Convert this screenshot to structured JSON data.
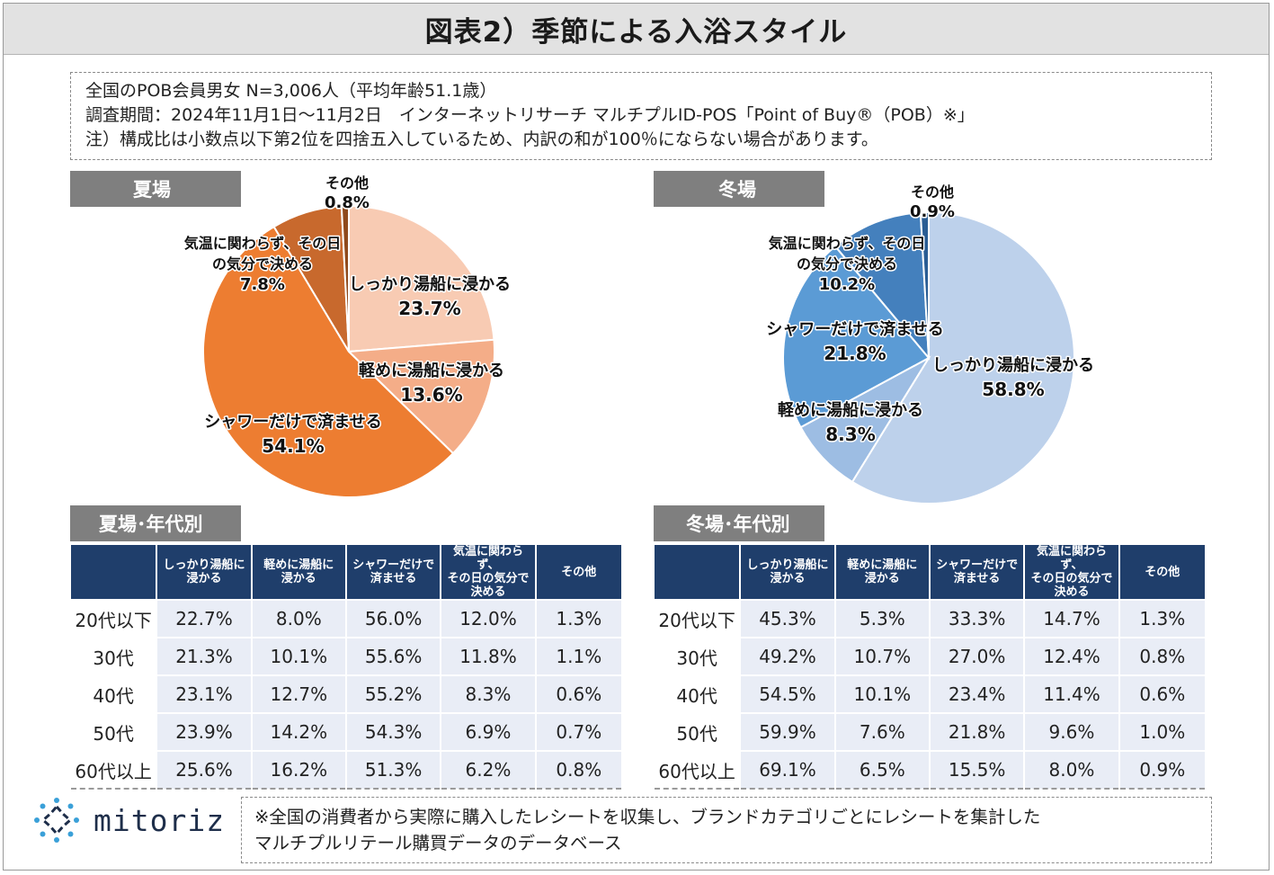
{
  "title": "図表2）季節による入浴スタイル",
  "notes": [
    "全国のPOB会員男女 N=3,006人（平均年齢51.1歳）",
    "調査期間：2024年11月1日～11月2日　インターネットリサーチ マルチプルID-POS「Point of Buy®（POB）※」",
    "注）構成比は小数点以下第2位を四捨五入しているため、内訳の和が100％にならない場合があります。"
  ],
  "summer": {
    "label": "夏場",
    "table_label": "夏場･年代別"
  },
  "winter": {
    "label": "冬場",
    "table_label": "冬場･年代別"
  },
  "chart_data": [
    {
      "type": "pie",
      "title": "夏場",
      "slices": [
        {
          "label": "しっかり湯船に浸かる",
          "value": 23.7,
          "value_label": "23.7%",
          "color": "#f8cbb3"
        },
        {
          "label": "軽めに湯船に浸かる",
          "value": 13.6,
          "value_label": "13.6%",
          "color": "#f4ad88"
        },
        {
          "label": "シャワーだけで済ませる",
          "value": 54.1,
          "value_label": "54.1%",
          "color": "#ed7d31"
        },
        {
          "label": "気温に関わらず、その日の気分で決める",
          "value": 7.8,
          "value_label": "7.8%",
          "color": "#c8692d"
        },
        {
          "label": "その他",
          "value": 0.8,
          "value_label": "0.8%",
          "color": "#8f4a1d"
        }
      ],
      "slice_label_lines": [
        [
          "しっかり湯船に浸かる",
          "23.7%"
        ],
        [
          "軽めに湯船に浸かる",
          "13.6%"
        ],
        [
          "シャワーだけで済ませる",
          "54.1%"
        ],
        [
          "気温に関わらず、その日",
          "の気分で決める",
          "7.8%"
        ],
        [
          "その他",
          "0.8%"
        ]
      ]
    },
    {
      "type": "pie",
      "title": "冬場",
      "slices": [
        {
          "label": "しっかり湯船に浸かる",
          "value": 58.8,
          "value_label": "58.8%",
          "color": "#bdd1eb"
        },
        {
          "label": "軽めに湯船に浸かる",
          "value": 8.3,
          "value_label": "8.3%",
          "color": "#9dbde3"
        },
        {
          "label": "シャワーだけで済ませる",
          "value": 21.8,
          "value_label": "21.8%",
          "color": "#5b9bd5"
        },
        {
          "label": "気温に関わらず、その日の気分で決める",
          "value": 10.2,
          "value_label": "10.2%",
          "color": "#4480bd"
        },
        {
          "label": "その他",
          "value": 0.9,
          "value_label": "0.9%",
          "color": "#2a5d94"
        }
      ],
      "slice_label_lines": [
        [
          "しっかり湯船に浸かる",
          "58.8%"
        ],
        [
          "軽めに湯船に浸かる",
          "8.3%"
        ],
        [
          "シャワーだけで済ませる",
          "21.8%"
        ],
        [
          "気温に関わらず、その日",
          "の気分で決める",
          "10.2%"
        ],
        [
          "その他",
          "0.9%"
        ]
      ]
    },
    {
      "type": "table",
      "title": "夏場･年代別",
      "columns": [
        "",
        "しっかり湯船に\n浸かる",
        "軽めに湯船に\n浸かる",
        "シャワーだけで\n済ませる",
        "気温に関わらず、\nその日の気分で\n決める",
        "その他"
      ],
      "rows": [
        [
          "20代以下",
          "22.7%",
          "8.0%",
          "56.0%",
          "12.0%",
          "1.3%"
        ],
        [
          "30代",
          "21.3%",
          "10.1%",
          "55.6%",
          "11.8%",
          "1.1%"
        ],
        [
          "40代",
          "23.1%",
          "12.7%",
          "55.2%",
          "8.3%",
          "0.6%"
        ],
        [
          "50代",
          "23.9%",
          "14.2%",
          "54.3%",
          "6.9%",
          "0.7%"
        ],
        [
          "60代以上",
          "25.6%",
          "16.2%",
          "51.3%",
          "6.2%",
          "0.8%"
        ]
      ]
    },
    {
      "type": "table",
      "title": "冬場･年代別",
      "columns": [
        "",
        "しっかり湯船に\n浸かる",
        "軽めに湯船に\n浸かる",
        "シャワーだけで\n済ませる",
        "気温に関わらず、\nその日の気分で\n決める",
        "その他"
      ],
      "rows": [
        [
          "20代以下",
          "45.3%",
          "5.3%",
          "33.3%",
          "14.7%",
          "1.3%"
        ],
        [
          "30代",
          "49.2%",
          "10.7%",
          "27.0%",
          "12.4%",
          "0.8%"
        ],
        [
          "40代",
          "54.5%",
          "10.1%",
          "23.4%",
          "11.4%",
          "0.6%"
        ],
        [
          "50代",
          "59.9%",
          "7.6%",
          "21.8%",
          "9.6%",
          "1.0%"
        ],
        [
          "60代以上",
          "69.1%",
          "6.5%",
          "15.5%",
          "8.0%",
          "0.9%"
        ]
      ]
    }
  ],
  "logo": {
    "text": "mitoriz",
    "icon": "sun-ring-icon",
    "color": "#3aa0d8"
  },
  "footnote": [
    "※全国の消費者から実際に購入したレシートを収集し、ブランドカテゴリごとにレシートを集計した",
    "マルチプルリテール購買データのデータベース"
  ]
}
